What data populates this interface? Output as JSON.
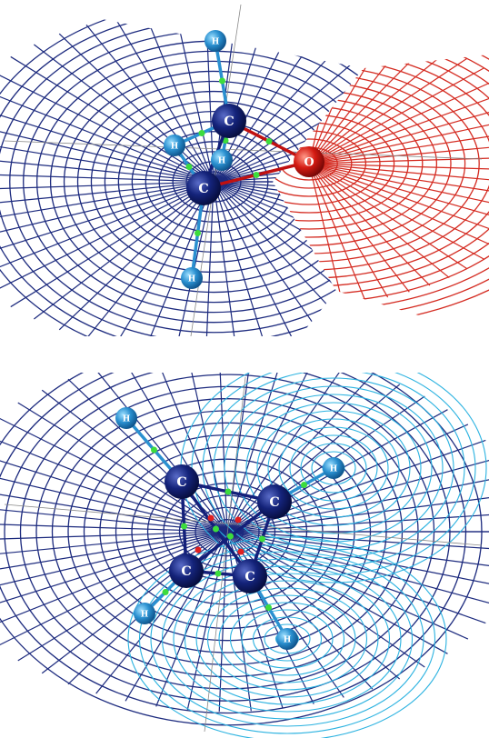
{
  "panels": [
    {
      "atoms": [
        {
          "label": "H"
        },
        {
          "label": "C"
        },
        {
          "label": "H"
        },
        {
          "label": "H"
        },
        {
          "label": "C"
        },
        {
          "label": "O"
        },
        {
          "label": "H"
        }
      ]
    },
    {
      "atoms": [
        {
          "label": "H"
        },
        {
          "label": "C"
        },
        {
          "label": "C"
        },
        {
          "label": "H"
        },
        {
          "label": "C"
        },
        {
          "label": "C"
        },
        {
          "label": "H"
        },
        {
          "label": "H"
        }
      ]
    }
  ]
}
